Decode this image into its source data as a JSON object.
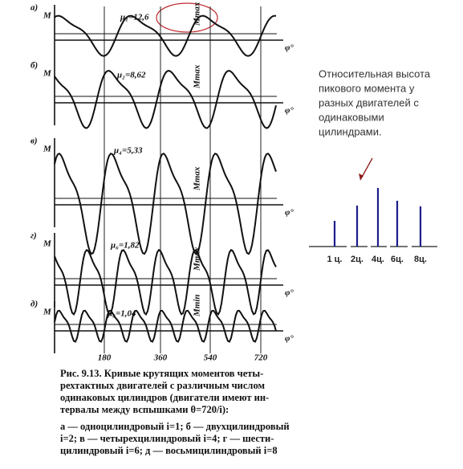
{
  "panels": [
    {
      "label": "а)",
      "axis": "M",
      "mu": "μ₁=12,6",
      "phi": "φ°",
      "note": "Mmax"
    },
    {
      "label": "б)",
      "axis": "M",
      "mu": "μ₂=8,62",
      "phi": "φ°",
      "note": "Mmax"
    },
    {
      "label": "в)",
      "axis": "M",
      "mu": "μ₄=5,33",
      "phi": "φ°",
      "note": "Mmax"
    },
    {
      "label": "г)",
      "axis": "M",
      "mu": "μ₆=1,82",
      "phi": "φ°",
      "note": "Mmax"
    },
    {
      "label": "д)",
      "axis": "M",
      "mu": "μ₈=1,04",
      "phi": "φ°",
      "note": "Mmin"
    }
  ],
  "x_axis_ticks": [
    "180",
    "360",
    "540",
    "720"
  ],
  "caption": {
    "lines": [
      "Рис. 9.13. Кривые крутящих моментов четы-",
      "рехтактных двигателей с различным числом",
      "одинаковых цилиндров (двигатели имеют ин-",
      "тервалы между вспышками θ=720/i):",
      "а — одноцилиндровый i=1; б — двухцилиндровый",
      "i=2; в — четырехцилиндровый i=4; г — шести-",
      "цилиндровый i=6; д — восьмицилиндровый i=8"
    ]
  },
  "annotation": {
    "lines": [
      "Относительная высота",
      "пикового момента у",
      "разных двигателей с",
      "одинаковыми",
      "цилиндрами."
    ]
  },
  "peak_chart": {
    "categories": [
      "1 ц.",
      "2ц.",
      "4ц.",
      "6ц.",
      "8ц."
    ],
    "values": [
      32,
      51,
      73,
      57,
      50
    ],
    "color": "#1c1c8c"
  }
}
